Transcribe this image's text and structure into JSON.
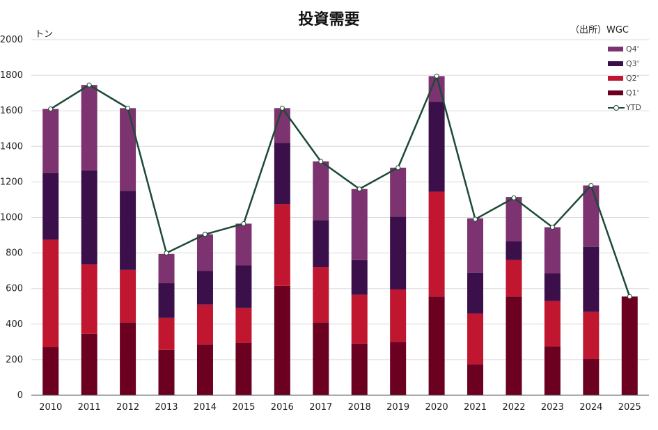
{
  "chart_data": {
    "type": "bar",
    "stacked": true,
    "title": "投資需要",
    "unit_label": "トン",
    "source_label": "（出所）WGC",
    "categories": [
      "2010",
      "2011",
      "2012",
      "2013",
      "2014",
      "2015",
      "2016",
      "2017",
      "2018",
      "2019",
      "2020",
      "2021",
      "2022",
      "2023",
      "2024",
      "2025"
    ],
    "ylim": [
      0,
      2000
    ],
    "yticks": [
      0,
      200,
      400,
      600,
      800,
      1000,
      1200,
      1400,
      1600,
      1800,
      2000
    ],
    "grid": true,
    "legend_position": "top-right",
    "series": [
      {
        "name": "Q1'",
        "color": "#6b0020",
        "values": [
          270,
          345,
          410,
          255,
          285,
          295,
          615,
          410,
          290,
          300,
          555,
          175,
          555,
          275,
          205,
          555
        ]
      },
      {
        "name": "Q2'",
        "color": "#c0162f",
        "values": [
          605,
          390,
          295,
          180,
          225,
          195,
          460,
          310,
          275,
          295,
          590,
          285,
          205,
          255,
          265,
          0
        ]
      },
      {
        "name": "Q3'",
        "color": "#3a0f4a",
        "values": [
          375,
          530,
          445,
          195,
          190,
          240,
          345,
          265,
          195,
          410,
          505,
          230,
          105,
          155,
          365,
          0
        ]
      },
      {
        "name": "Q4'",
        "color": "#7d3370",
        "values": [
          360,
          480,
          465,
          165,
          205,
          235,
          195,
          330,
          400,
          275,
          145,
          305,
          250,
          260,
          345,
          0
        ]
      }
    ],
    "line": {
      "name": "YTD",
      "color": "#1c4a36",
      "values": [
        1610,
        1745,
        1615,
        800,
        905,
        965,
        1615,
        1315,
        1160,
        1280,
        1795,
        990,
        1110,
        945,
        1180,
        555
      ]
    }
  }
}
